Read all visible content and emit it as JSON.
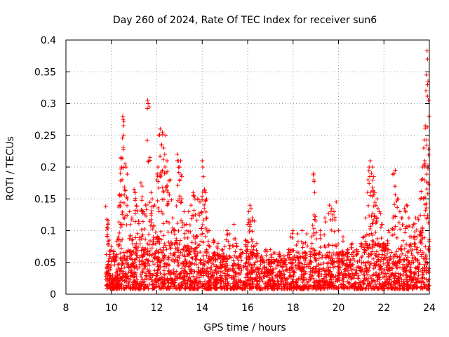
{
  "chart_data": {
    "type": "scatter",
    "title": "Day 260 of 2024, Rate Of TEC Index for receiver sun6",
    "xlabel": "GPS time / hours",
    "ylabel": "ROTI / TECUs",
    "xlim": [
      8,
      24
    ],
    "ylim": [
      0,
      0.4
    ],
    "xticks": [
      8,
      10,
      12,
      14,
      16,
      18,
      20,
      22,
      24
    ],
    "xtick_labels": [
      "8",
      "10",
      "12",
      "14",
      "16",
      "18",
      "20",
      "22",
      "24"
    ],
    "yticks": [
      0,
      0.05,
      0.1,
      0.15,
      0.2,
      0.25,
      0.3,
      0.35,
      0.4
    ],
    "ytick_labels": [
      "0",
      "0.05",
      "0.1",
      "0.15",
      "0.2",
      "0.25",
      "0.3",
      "0.35",
      "0.4"
    ],
    "grid": true,
    "marker": "+",
    "color": "#ff0000",
    "series": [
      {
        "name": "ROTI",
        "points": [
          [
            9.75,
            0.138
          ],
          [
            9.8,
            0.118
          ],
          [
            9.85,
            0.11
          ],
          [
            9.9,
            0.085
          ],
          [
            10.0,
            0.075
          ],
          [
            10.1,
            0.068
          ],
          [
            10.2,
            0.06
          ],
          [
            10.3,
            0.09
          ],
          [
            10.35,
            0.14
          ],
          [
            10.38,
            0.155
          ],
          [
            10.4,
            0.19
          ],
          [
            10.42,
            0.215
          ],
          [
            10.45,
            0.2
          ],
          [
            10.5,
            0.28
          ],
          [
            10.52,
            0.275
          ],
          [
            10.55,
            0.272
          ],
          [
            10.6,
            0.205
          ],
          [
            10.65,
            0.2
          ],
          [
            10.7,
            0.15
          ],
          [
            10.8,
            0.13
          ],
          [
            10.9,
            0.12
          ],
          [
            11.0,
            0.165
          ],
          [
            11.05,
            0.16
          ],
          [
            11.1,
            0.14
          ],
          [
            11.2,
            0.115
          ],
          [
            11.3,
            0.175
          ],
          [
            11.35,
            0.17
          ],
          [
            11.4,
            0.13
          ],
          [
            11.5,
            0.14
          ],
          [
            11.6,
            0.305
          ],
          [
            11.62,
            0.3
          ],
          [
            11.7,
            0.215
          ],
          [
            11.75,
            0.16
          ],
          [
            11.8,
            0.15
          ],
          [
            11.9,
            0.14
          ],
          [
            12.0,
            0.18
          ],
          [
            12.05,
            0.2
          ],
          [
            12.1,
            0.25
          ],
          [
            12.15,
            0.26
          ],
          [
            12.2,
            0.235
          ],
          [
            12.25,
            0.255
          ],
          [
            12.3,
            0.23
          ],
          [
            12.35,
            0.22
          ],
          [
            12.4,
            0.25
          ],
          [
            12.45,
            0.21
          ],
          [
            12.5,
            0.16
          ],
          [
            12.6,
            0.18
          ],
          [
            12.7,
            0.12
          ],
          [
            12.8,
            0.1
          ],
          [
            12.9,
            0.22
          ],
          [
            12.95,
            0.21
          ],
          [
            13.0,
            0.2
          ],
          [
            13.05,
            0.21
          ],
          [
            13.1,
            0.15
          ],
          [
            13.2,
            0.13
          ],
          [
            13.3,
            0.11
          ],
          [
            13.4,
            0.13
          ],
          [
            13.5,
            0.14
          ],
          [
            13.6,
            0.16
          ],
          [
            13.65,
            0.155
          ],
          [
            13.7,
            0.125
          ],
          [
            13.8,
            0.15
          ],
          [
            13.9,
            0.145
          ],
          [
            14.0,
            0.21
          ],
          [
            14.02,
            0.2
          ],
          [
            14.05,
            0.185
          ],
          [
            14.1,
            0.165
          ],
          [
            14.15,
            0.16
          ],
          [
            14.2,
            0.12
          ],
          [
            14.3,
            0.1
          ],
          [
            14.5,
            0.085
          ],
          [
            14.7,
            0.08
          ],
          [
            14.9,
            0.07
          ],
          [
            15.0,
            0.075
          ],
          [
            15.1,
            0.1
          ],
          [
            15.2,
            0.095
          ],
          [
            15.4,
            0.11
          ],
          [
            15.5,
            0.08
          ],
          [
            15.7,
            0.07
          ],
          [
            15.9,
            0.085
          ],
          [
            16.0,
            0.11
          ],
          [
            16.05,
            0.13
          ],
          [
            16.1,
            0.14
          ],
          [
            16.15,
            0.135
          ],
          [
            16.2,
            0.12
          ],
          [
            16.3,
            0.115
          ],
          [
            16.4,
            0.08
          ],
          [
            16.6,
            0.06
          ],
          [
            16.8,
            0.07
          ],
          [
            17.0,
            0.07
          ],
          [
            17.2,
            0.065
          ],
          [
            17.4,
            0.065
          ],
          [
            17.6,
            0.06
          ],
          [
            17.8,
            0.07
          ],
          [
            17.9,
            0.09
          ],
          [
            18.0,
            0.1
          ],
          [
            18.2,
            0.095
          ],
          [
            18.4,
            0.1
          ],
          [
            18.6,
            0.095
          ],
          [
            18.8,
            0.09
          ],
          [
            18.9,
            0.19
          ],
          [
            18.92,
            0.18
          ],
          [
            18.95,
            0.16
          ],
          [
            19.0,
            0.115
          ],
          [
            19.2,
            0.1
          ],
          [
            19.4,
            0.12
          ],
          [
            19.6,
            0.14
          ],
          [
            19.7,
            0.135
          ],
          [
            19.8,
            0.13
          ],
          [
            19.9,
            0.145
          ],
          [
            20.0,
            0.1
          ],
          [
            20.2,
            0.09
          ],
          [
            20.4,
            0.07
          ],
          [
            20.6,
            0.08
          ],
          [
            20.8,
            0.07
          ],
          [
            21.0,
            0.08
          ],
          [
            21.1,
            0.09
          ],
          [
            21.2,
            0.12
          ],
          [
            21.3,
            0.18
          ],
          [
            21.35,
            0.2
          ],
          [
            21.4,
            0.21
          ],
          [
            21.45,
            0.19
          ],
          [
            21.5,
            0.2
          ],
          [
            21.55,
            0.185
          ],
          [
            21.6,
            0.16
          ],
          [
            21.65,
            0.14
          ],
          [
            21.7,
            0.15
          ],
          [
            21.8,
            0.13
          ],
          [
            21.9,
            0.11
          ],
          [
            22.0,
            0.08
          ],
          [
            22.2,
            0.1
          ],
          [
            22.4,
            0.12
          ],
          [
            22.45,
            0.19
          ],
          [
            22.5,
            0.195
          ],
          [
            22.6,
            0.15
          ],
          [
            22.7,
            0.13
          ],
          [
            22.8,
            0.12
          ],
          [
            22.9,
            0.135
          ],
          [
            23.0,
            0.14
          ],
          [
            23.1,
            0.12
          ],
          [
            23.2,
            0.09
          ],
          [
            23.3,
            0.11
          ],
          [
            23.4,
            0.12
          ],
          [
            23.5,
            0.12
          ],
          [
            23.6,
            0.15
          ],
          [
            23.65,
            0.18
          ],
          [
            23.7,
            0.2
          ],
          [
            23.75,
            0.23
          ],
          [
            23.8,
            0.21
          ],
          [
            23.82,
            0.265
          ],
          [
            23.85,
            0.32
          ],
          [
            23.87,
            0.345
          ],
          [
            23.9,
            0.383
          ],
          [
            23.92,
            0.37
          ],
          [
            23.94,
            0.335
          ],
          [
            23.96,
            0.305
          ],
          [
            23.98,
            0.28
          ]
        ],
        "envelope": {
          "description": "dense band of measurements between the listed start and end hours",
          "start_hour": 9.75,
          "end_hour": 24.0,
          "floor_roti": 0.008,
          "band_upper_roti": [
            [
              9.75,
              0.045
            ],
            [
              10.5,
              0.055
            ],
            [
              11.0,
              0.06
            ],
            [
              11.5,
              0.065
            ],
            [
              12.0,
              0.075
            ],
            [
              12.5,
              0.07
            ],
            [
              13.0,
              0.065
            ],
            [
              13.5,
              0.06
            ],
            [
              14.0,
              0.065
            ],
            [
              14.5,
              0.055
            ],
            [
              15.0,
              0.05
            ],
            [
              15.5,
              0.05
            ],
            [
              16.0,
              0.06
            ],
            [
              16.5,
              0.05
            ],
            [
              17.0,
              0.045
            ],
            [
              17.5,
              0.045
            ],
            [
              18.0,
              0.05
            ],
            [
              18.5,
              0.055
            ],
            [
              19.0,
              0.055
            ],
            [
              19.5,
              0.055
            ],
            [
              20.0,
              0.055
            ],
            [
              20.5,
              0.055
            ],
            [
              21.0,
              0.06
            ],
            [
              21.5,
              0.07
            ],
            [
              22.0,
              0.065
            ],
            [
              22.5,
              0.06
            ],
            [
              23.0,
              0.06
            ],
            [
              23.5,
              0.07
            ],
            [
              24.0,
              0.075
            ]
          ]
        }
      }
    ]
  }
}
